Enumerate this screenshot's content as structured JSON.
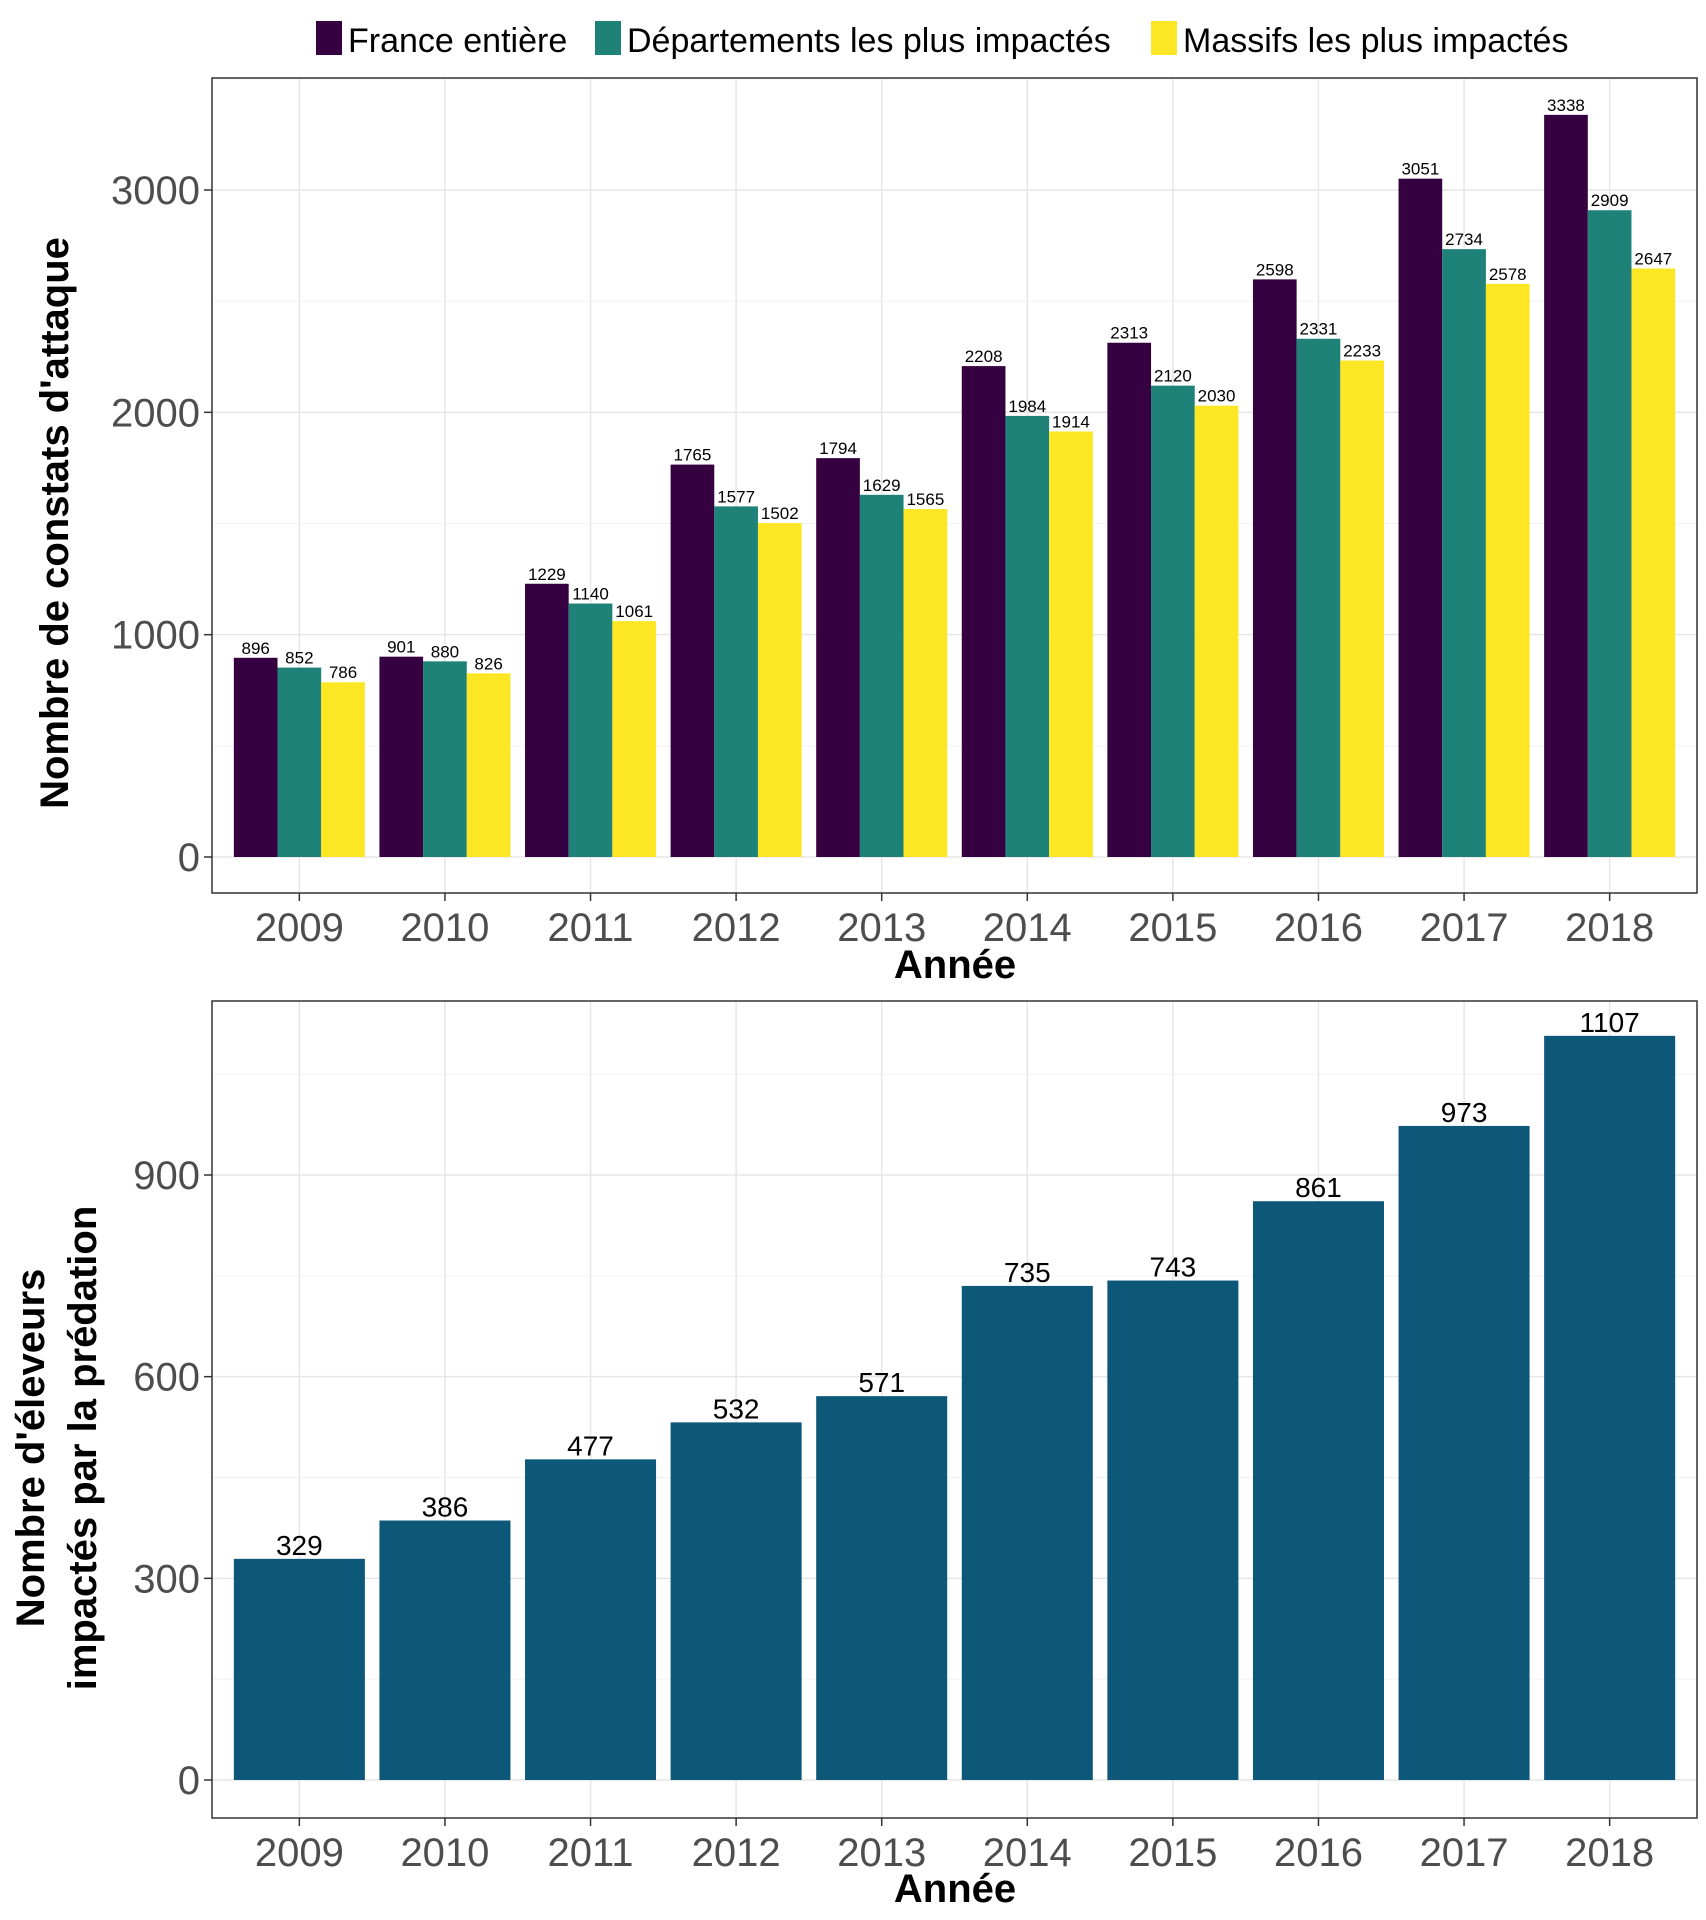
{
  "colors": {
    "france": "#360140",
    "departements": "#1f8278",
    "massifs": "#fde725",
    "eleveurs": "#0d5779"
  },
  "chart_data": [
    {
      "type": "bar",
      "categories": [
        "2009",
        "2010",
        "2011",
        "2012",
        "2013",
        "2014",
        "2015",
        "2016",
        "2017",
        "2018"
      ],
      "series": [
        {
          "name": "France entière",
          "values": [
            896,
            901,
            1229,
            1765,
            1794,
            2208,
            2313,
            2598,
            3051,
            3338
          ]
        },
        {
          "name": "Départements les plus impactés",
          "values": [
            852,
            880,
            1140,
            1577,
            1629,
            1984,
            2120,
            2331,
            2734,
            2909
          ]
        },
        {
          "name": "Massifs les plus impactés",
          "values": [
            786,
            826,
            1061,
            1502,
            1565,
            1914,
            2030,
            2233,
            2578,
            2647
          ]
        }
      ],
      "xlabel": "Année",
      "ylabel": "Nombre de constats d'attaque",
      "ylim": [
        0,
        3500
      ],
      "yticks": [
        "0",
        "1000",
        "2000",
        "3000"
      ],
      "legend": "top",
      "grid": true
    },
    {
      "type": "bar",
      "categories": [
        "2009",
        "2010",
        "2011",
        "2012",
        "2013",
        "2014",
        "2015",
        "2016",
        "2017",
        "2018"
      ],
      "values": [
        329,
        386,
        477,
        532,
        571,
        735,
        743,
        861,
        973,
        1107
      ],
      "xlabel": "Année",
      "ylabel_lines": [
        "Nombre d'éleveurs",
        "impactés par la prédation"
      ],
      "ylim": [
        0,
        1160
      ],
      "yticks": [
        "0",
        "300",
        "600",
        "900"
      ],
      "grid": true
    }
  ]
}
